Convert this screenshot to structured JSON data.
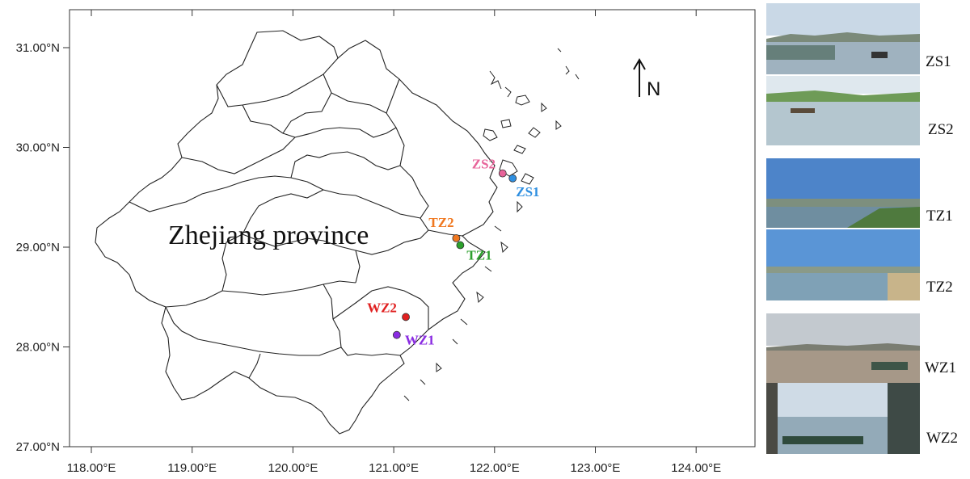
{
  "map": {
    "province_label": "Zhejiang province",
    "north_label": "N",
    "x_ticks": [
      "118.00°E",
      "119.00°E",
      "120.00°E",
      "121.00°E",
      "122.00°E",
      "123.00°E",
      "124.00°E"
    ],
    "y_ticks": [
      "31.00°N",
      "30.00°N",
      "29.00°N",
      "28.00°N",
      "27.00°N"
    ],
    "sites": [
      {
        "id": "ZS2",
        "label": "ZS2",
        "color": "#e7649a",
        "lon": 122.08,
        "lat": 29.74
      },
      {
        "id": "ZS1",
        "label": "ZS1",
        "color": "#2f8fe0",
        "lon": 122.18,
        "lat": 29.69
      },
      {
        "id": "TZ2",
        "label": "TZ2",
        "color": "#f07820",
        "lon": 121.62,
        "lat": 29.09
      },
      {
        "id": "TZ1",
        "label": "TZ1",
        "color": "#2ca02c",
        "lon": 121.66,
        "lat": 29.02
      },
      {
        "id": "WZ2",
        "label": "WZ2",
        "color": "#e02020",
        "lon": 121.12,
        "lat": 28.3
      },
      {
        "id": "WZ1",
        "label": "WZ1",
        "color": "#8a2be2",
        "lon": 121.03,
        "lat": 28.12
      }
    ]
  },
  "photos": [
    {
      "label": "ZS1"
    },
    {
      "label": "ZS2"
    },
    {
      "label": "TZ1"
    },
    {
      "label": "TZ2"
    },
    {
      "label": "WZ1"
    },
    {
      "label": "WZ2"
    }
  ]
}
